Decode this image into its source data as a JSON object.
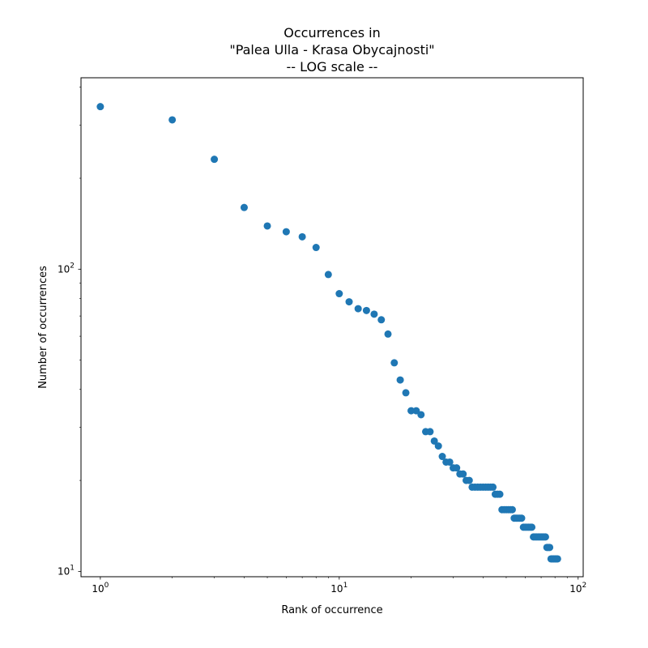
{
  "chart_data": {
    "type": "scatter",
    "title": "Occurrences in\n\"Palea Ulla - Krasa Obycajnosti\"\n-- LOG scale --",
    "xlabel": "Rank of occurrence",
    "ylabel": "Number of occurrences",
    "xscale": "log",
    "yscale": "log",
    "xlim": [
      0.83,
      105
    ],
    "ylim": [
      9.6,
      430
    ],
    "x_ticks": [
      {
        "value": 1,
        "base": "10",
        "exp": "0"
      },
      {
        "value": 10,
        "base": "10",
        "exp": "1"
      },
      {
        "value": 100,
        "base": "10",
        "exp": "2"
      }
    ],
    "y_ticks": [
      {
        "value": 10,
        "base": "10",
        "exp": "1"
      },
      {
        "value": 100,
        "base": "10",
        "exp": "2"
      }
    ],
    "grid": false,
    "marker_color": "#1f77b4",
    "series": [
      {
        "x": [
          1,
          2,
          3,
          4,
          5,
          6,
          7,
          8,
          9,
          10,
          11,
          12,
          13,
          14,
          15,
          16,
          17,
          18,
          19,
          20,
          21,
          22,
          23,
          24,
          25,
          26,
          27,
          28,
          29,
          30,
          31,
          32,
          33,
          34,
          35,
          36,
          37,
          38,
          39,
          40,
          41,
          42,
          43,
          44,
          45,
          46,
          47,
          48,
          49,
          50,
          51,
          52,
          53,
          54,
          55,
          56,
          57,
          58,
          59,
          60,
          61,
          62,
          63,
          64,
          65,
          66,
          67,
          68,
          69,
          70,
          71,
          72,
          73,
          74,
          75,
          76,
          77,
          78,
          79,
          80,
          81,
          82
        ],
        "y": [
          345,
          312,
          231,
          160,
          139,
          133,
          128,
          118,
          96,
          83,
          78,
          74,
          73,
          71,
          68,
          61,
          49,
          43,
          39,
          34,
          34,
          33,
          29,
          29,
          27,
          26,
          24,
          23,
          23,
          22,
          22,
          21,
          21,
          20,
          20,
          19,
          19,
          19,
          19,
          19,
          19,
          19,
          19,
          19,
          18,
          18,
          18,
          16,
          16,
          16,
          16,
          16,
          16,
          15,
          15,
          15,
          15,
          15,
          14,
          14,
          14,
          14,
          14,
          14,
          13,
          13,
          13,
          13,
          13,
          13,
          13,
          13,
          13,
          12,
          12,
          12,
          11,
          11,
          11,
          11,
          11,
          11
        ]
      }
    ]
  }
}
